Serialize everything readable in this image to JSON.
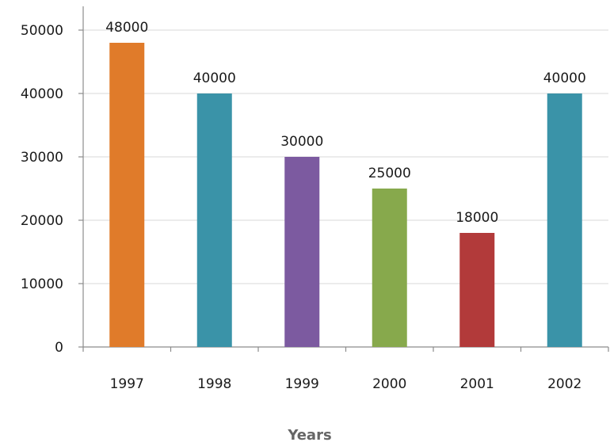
{
  "chart_data": {
    "type": "bar",
    "title": "",
    "xlabel": "Years",
    "ylabel": "",
    "categories": [
      "1997",
      "1998",
      "1999",
      "2000",
      "2001",
      "2002"
    ],
    "values": [
      48000,
      40000,
      30000,
      25000,
      18000,
      40000
    ],
    "data_labels": [
      "48000",
      "40000",
      "30000",
      "25000",
      "18000",
      "40000"
    ],
    "colors": [
      "#e07b2a",
      "#3a93a8",
      "#7c5aa0",
      "#87a94c",
      "#b23a3a",
      "#3a93a8"
    ],
    "ylim": [
      0,
      50000
    ],
    "yticks": [
      0,
      10000,
      20000,
      30000,
      40000,
      50000
    ],
    "ytick_labels": [
      "0",
      "10000",
      "20000",
      "30000",
      "40000",
      "50000"
    ],
    "grid": true,
    "legend": "none"
  }
}
